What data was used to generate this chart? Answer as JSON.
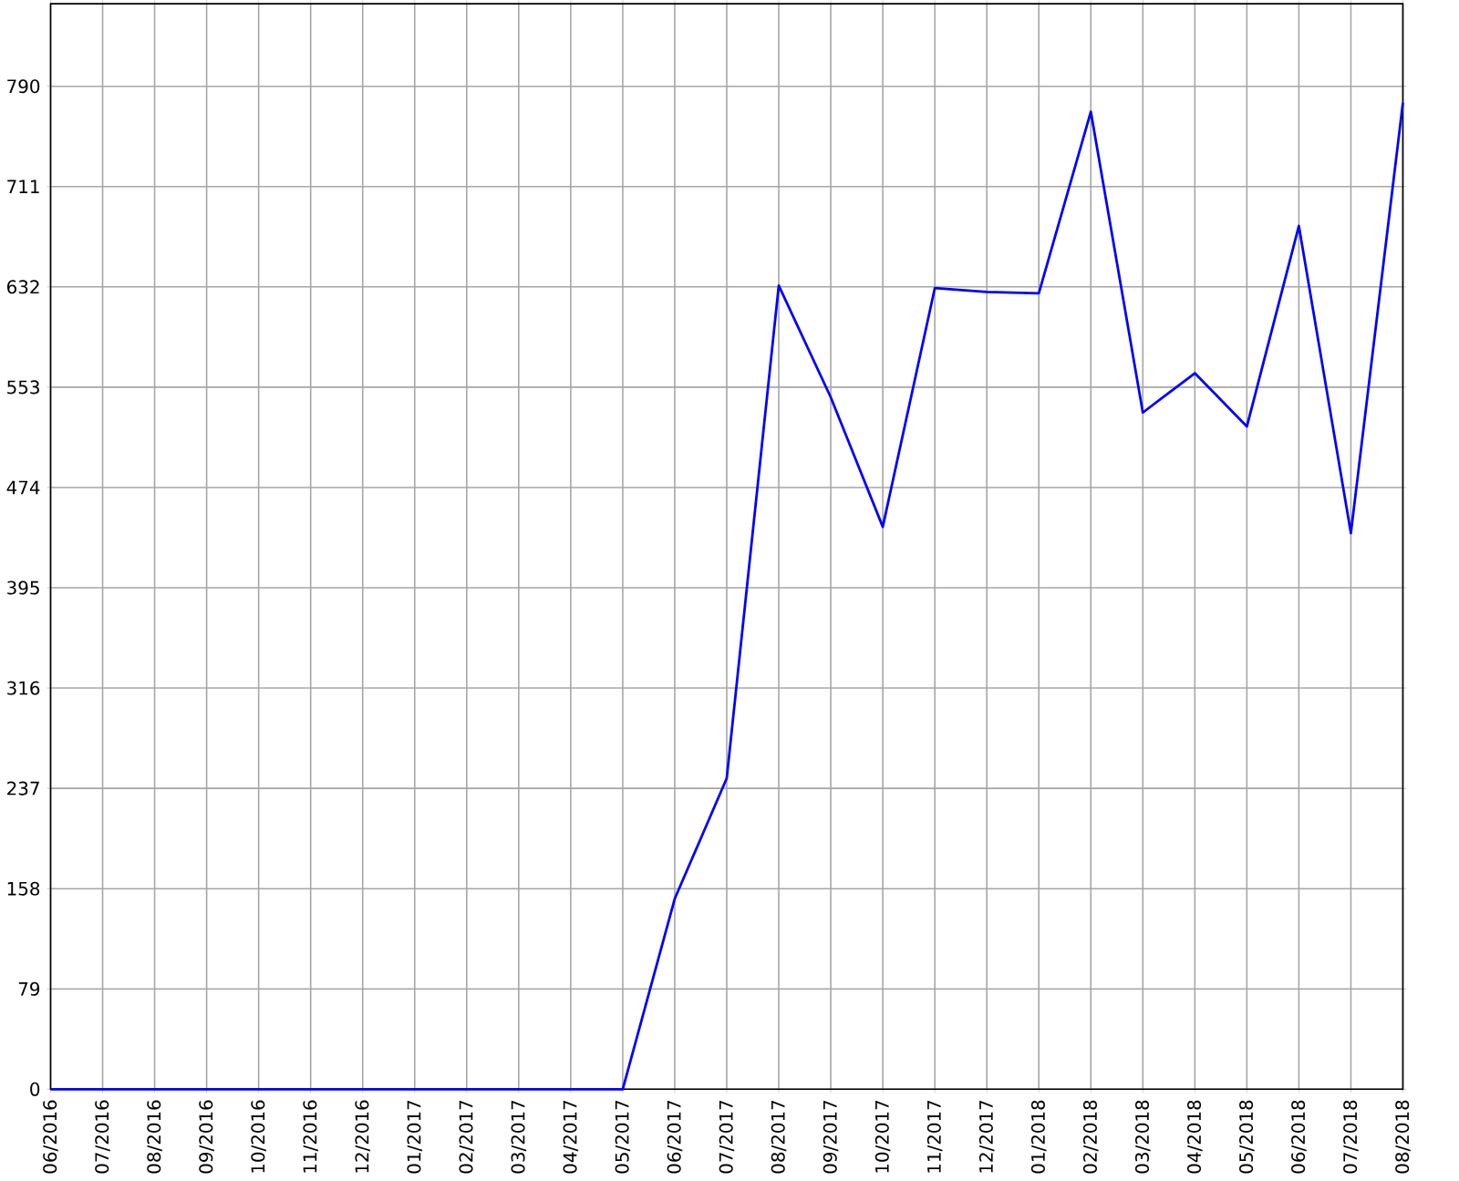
{
  "chart_data": {
    "type": "line",
    "categories": [
      "06/2016",
      "07/2016",
      "08/2016",
      "09/2016",
      "10/2016",
      "11/2016",
      "12/2016",
      "01/2017",
      "02/2017",
      "03/2017",
      "04/2017",
      "05/2017",
      "06/2017",
      "07/2017",
      "08/2017",
      "09/2017",
      "10/2017",
      "11/2017",
      "12/2017",
      "01/2018",
      "02/2018",
      "03/2018",
      "04/2018",
      "05/2018",
      "06/2018",
      "07/2018",
      "08/2018"
    ],
    "series": [
      {
        "color": "#0000ff",
        "values": [
          0,
          0,
          0,
          0,
          0,
          0,
          0,
          0,
          0,
          0,
          0,
          0,
          150,
          245,
          633,
          545,
          443,
          631,
          628,
          627,
          770,
          533,
          564,
          522,
          680,
          438,
          777
        ]
      }
    ],
    "ylim": [
      0,
      855
    ],
    "yticks": [
      0,
      79,
      158,
      237,
      316,
      395,
      474,
      553,
      632,
      711,
      790
    ],
    "grid": true,
    "marker": "none",
    "line_style": "solid"
  }
}
